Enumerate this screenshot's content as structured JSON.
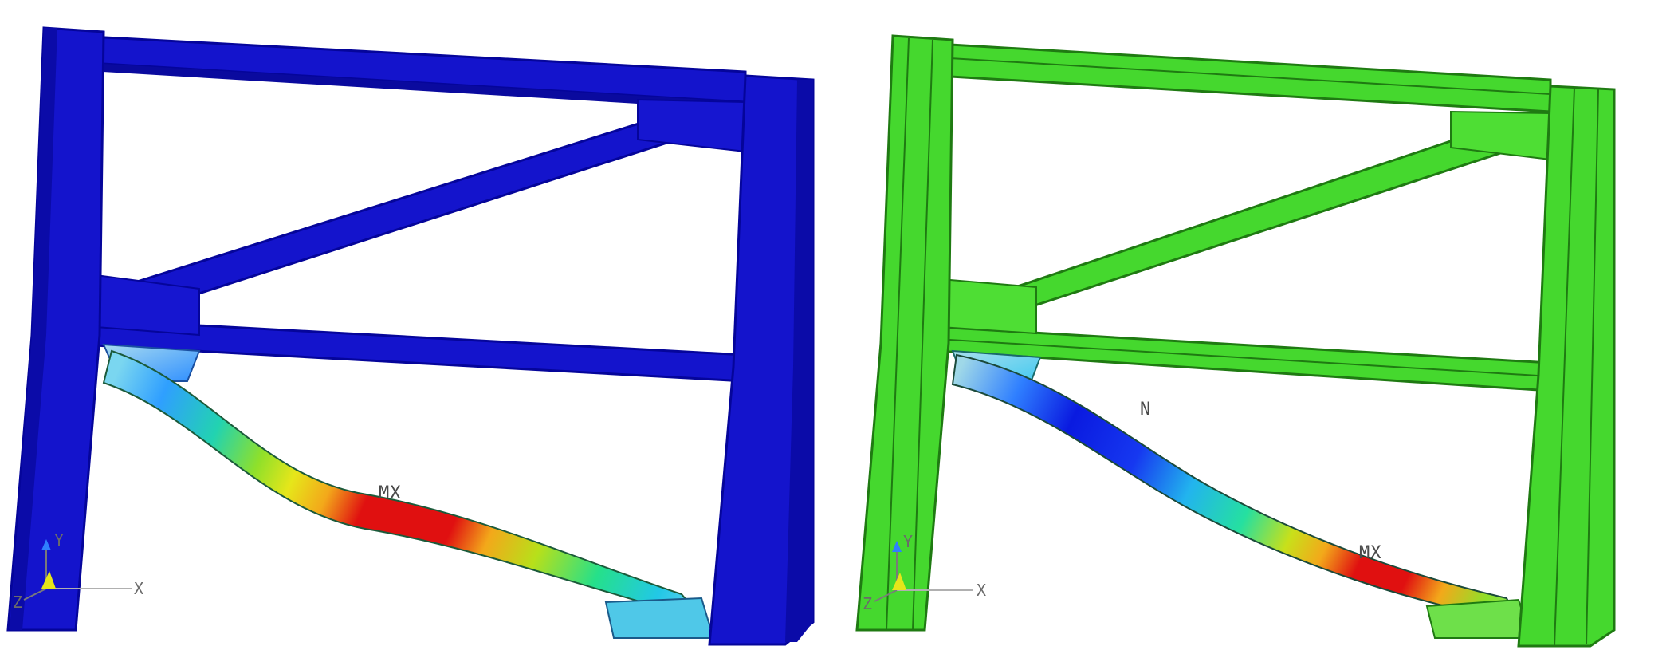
{
  "panels": [
    {
      "id": "left",
      "color_scheme": "blue",
      "labels": {
        "max": "MX",
        "min": ""
      },
      "triad": {
        "x": "X",
        "y": "Y",
        "z": "Z"
      }
    },
    {
      "id": "right",
      "color_scheme": "green",
      "labels": {
        "max": "MX",
        "min": "N"
      },
      "triad": {
        "x": "X",
        "y": "Y",
        "z": "Z"
      }
    }
  ],
  "colors": {
    "blue_frame": "#1212c8",
    "blue_frame_dark": "#05059a",
    "green_frame": "#3fd42a",
    "green_frame_dark": "#1f8e12",
    "contour": [
      "#0000ff",
      "#2f7fff",
      "#22d3e6",
      "#25e08a",
      "#8fe02a",
      "#e6e61a",
      "#f3a81a",
      "#f05a18",
      "#e01010"
    ]
  }
}
